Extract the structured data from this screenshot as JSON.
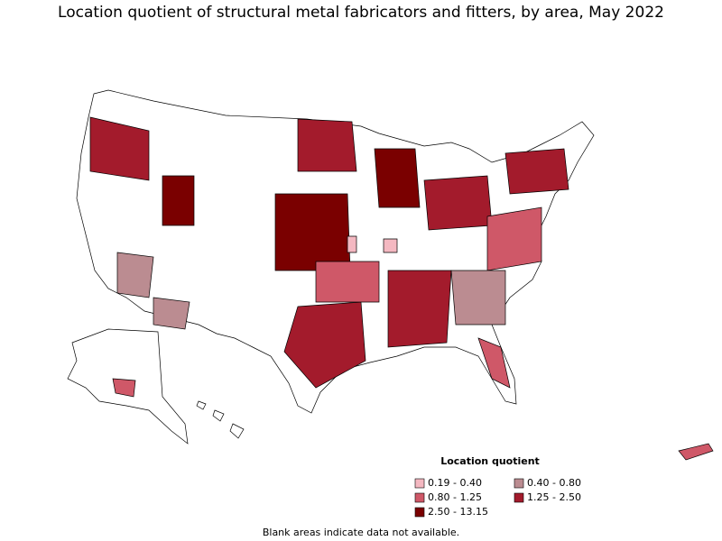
{
  "title": "Location quotient of structural metal fabricators and fitters, by area, May 2022",
  "legend": {
    "title": "Location quotient",
    "items": [
      {
        "label": "0.19 - 0.40",
        "color": "#f4b8c1"
      },
      {
        "label": "0.40 - 0.80",
        "color": "#bb8c91"
      },
      {
        "label": "0.80 - 1.25",
        "color": "#cf5868"
      },
      {
        "label": "1.25 - 2.50",
        "color": "#a31b2c"
      },
      {
        "label": "2.50 - 13.15",
        "color": "#7a0000"
      }
    ]
  },
  "footnote": "Blank areas indicate data not available."
}
